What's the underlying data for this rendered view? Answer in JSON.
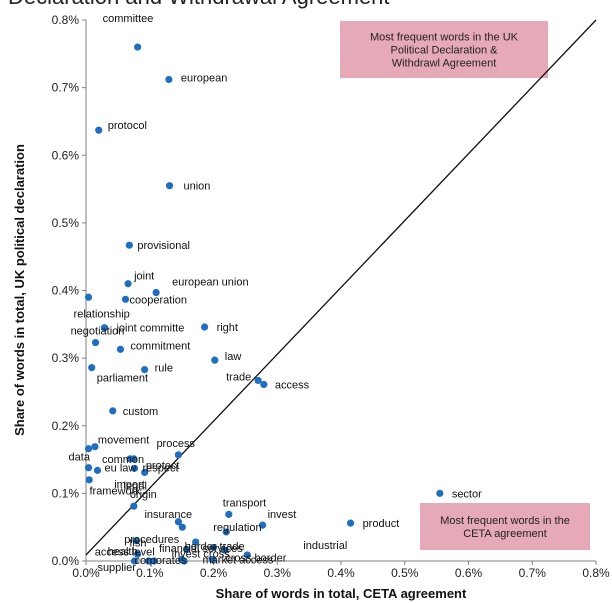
{
  "page": {
    "title": "Declaration and Withdrawal Agreement"
  },
  "chart_data": {
    "type": "scatter",
    "xlabel": "Share of words in total, CETA agreement",
    "ylabel": "Share of words in total, UK political declaration",
    "xlim": [
      0,
      0.8
    ],
    "ylim": [
      0,
      0.8
    ],
    "x_ticks": [
      "0.0%",
      "0.1%",
      "0.2%",
      "0.3%",
      "0.4%",
      "0.5%",
      "0.6%",
      "0.7%",
      "0.8%"
    ],
    "y_ticks": [
      "0.0%",
      "0.1%",
      "0.2%",
      "0.3%",
      "0.4%",
      "0.5%",
      "0.6%",
      "0.7%",
      "0.8%"
    ],
    "unit": "%",
    "diagonal": "y = x",
    "marker_color": "#1f6fc1",
    "annotations": [
      {
        "text": "Most frequent words in the UK Political Declaration & Withdrawl Agreement",
        "position": "top-right",
        "color": "#e6a9b8"
      },
      {
        "text": "Most frequent words in the CETA agreement",
        "position": "bottom-right",
        "color": "#e6a9b8"
      }
    ],
    "points": [
      {
        "label": "committee",
        "x": 0.081,
        "y": 0.76
      },
      {
        "label": "european",
        "x": 0.13,
        "y": 0.712
      },
      {
        "label": "protocol",
        "x": 0.02,
        "y": 0.637
      },
      {
        "label": "union",
        "x": 0.131,
        "y": 0.555
      },
      {
        "label": "provisional",
        "x": 0.068,
        "y": 0.467
      },
      {
        "label": "joint",
        "x": 0.066,
        "y": 0.41
      },
      {
        "label": "european union",
        "x": 0.11,
        "y": 0.397
      },
      {
        "label": "relationship",
        "x": 0.004,
        "y": 0.39
      },
      {
        "label": "cooperation",
        "x": 0.062,
        "y": 0.387
      },
      {
        "label": "joint committe",
        "x": 0.029,
        "y": 0.345
      },
      {
        "label": "right",
        "x": 0.186,
        "y": 0.346
      },
      {
        "label": "negotiation",
        "x": 0.015,
        "y": 0.323
      },
      {
        "label": "commitment",
        "x": 0.054,
        "y": 0.313
      },
      {
        "label": "law",
        "x": 0.202,
        "y": 0.297
      },
      {
        "label": "rule",
        "x": 0.092,
        "y": 0.283
      },
      {
        "label": "parliament",
        "x": 0.009,
        "y": 0.286
      },
      {
        "label": "trade",
        "x": 0.27,
        "y": 0.267
      },
      {
        "label": "access",
        "x": 0.279,
        "y": 0.261
      },
      {
        "label": "custom",
        "x": 0.042,
        "y": 0.222
      },
      {
        "label": "movement",
        "x": 0.014,
        "y": 0.169
      },
      {
        "label": "data",
        "x": 0.004,
        "y": 0.166
      },
      {
        "label": "process",
        "x": 0.145,
        "y": 0.157
      },
      {
        "label": "common",
        "x": 0.069,
        "y": 0.151
      },
      {
        "label": "protect",
        "x": 0.075,
        "y": 0.151
      },
      {
        "label": "eu law",
        "x": 0.004,
        "y": 0.138
      },
      {
        "label": "respect",
        "x": 0.076,
        "y": 0.137
      },
      {
        "label": "legal",
        "x": 0.092,
        "y": 0.131
      },
      {
        "label": "framework",
        "x": 0.018,
        "y": 0.134
      },
      {
        "label": "import",
        "x": 0.005,
        "y": 0.12
      },
      {
        "label": "sector",
        "x": 0.555,
        "y": 0.1
      },
      {
        "label": "origin",
        "x": 0.075,
        "y": 0.081
      },
      {
        "label": "transport",
        "x": 0.224,
        "y": 0.069
      },
      {
        "label": "insurance",
        "x": 0.145,
        "y": 0.058
      },
      {
        "label": "regulation",
        "x": 0.151,
        "y": 0.05
      },
      {
        "label": "invest",
        "x": 0.277,
        "y": 0.053
      },
      {
        "label": "product",
        "x": 0.415,
        "y": 0.056
      },
      {
        "label": "procedures",
        "x": 0.22,
        "y": 0.043
      },
      {
        "label": "fish",
        "x": 0.079,
        "y": 0.03
      },
      {
        "label": "border trade",
        "x": 0.172,
        "y": 0.028
      },
      {
        "label": "market access",
        "x": 0.2,
        "y": 0.02
      },
      {
        "label": "access level",
        "x": 0.158,
        "y": 0.017
      },
      {
        "label": "financial services",
        "x": 0.218,
        "y": 0.016
      },
      {
        "label": "health",
        "x": 0.081,
        "y": 0.01
      },
      {
        "label": "industrial",
        "x": 0.253,
        "y": 0.009
      },
      {
        "label": "invest cross",
        "x": 0.15,
        "y": 0.002
      },
      {
        "label": "cross border",
        "x": 0.198,
        "y": 0.002
      },
      {
        "label": "supplier",
        "x": 0.076,
        "y": 0.0
      },
      {
        "label": "corporates",
        "x": 0.098,
        "y": 0.0
      },
      {
        "label": "",
        "x": 0.107,
        "y": 0.0
      },
      {
        "label": "",
        "x": 0.154,
        "y": 0.0
      }
    ]
  }
}
